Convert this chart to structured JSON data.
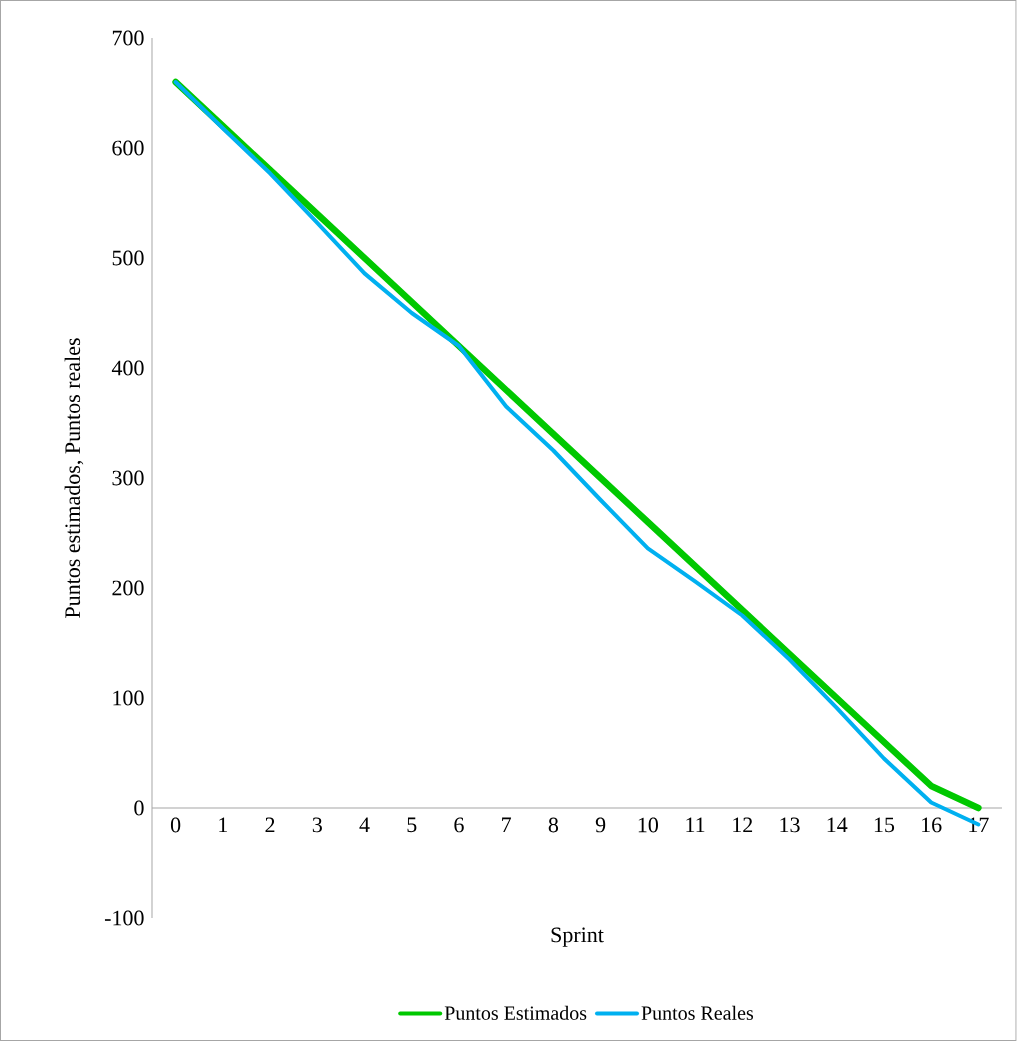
{
  "chart_data": {
    "type": "line",
    "xlabel": "Sprint",
    "ylabel": "Puntos estimados, Puntos reales",
    "categories": [
      "0",
      "1",
      "2",
      "3",
      "4",
      "5",
      "6",
      "7",
      "8",
      "9",
      "10",
      "11",
      "12",
      "13",
      "14",
      "15",
      "16",
      "17"
    ],
    "series": [
      {
        "name": "Puntos Estimados",
        "color": "#00c800",
        "values": [
          660,
          620,
          580,
          540,
          500,
          460,
          420,
          380,
          340,
          300,
          260,
          220,
          180,
          140,
          100,
          60,
          20,
          0
        ]
      },
      {
        "name": "Puntos Reales",
        "color": "#00b0f0",
        "values": [
          660,
          618,
          577,
          532,
          486,
          450,
          420,
          365,
          325,
          280,
          236,
          206,
          175,
          135,
          91,
          45,
          5,
          -15
        ]
      }
    ],
    "ylim": [
      -100,
      700
    ],
    "yticks": [
      -100,
      0,
      100,
      200,
      300,
      400,
      500,
      600,
      700
    ],
    "grid": false,
    "legend": "bottom",
    "marker": "none",
    "line_style": "solid"
  }
}
